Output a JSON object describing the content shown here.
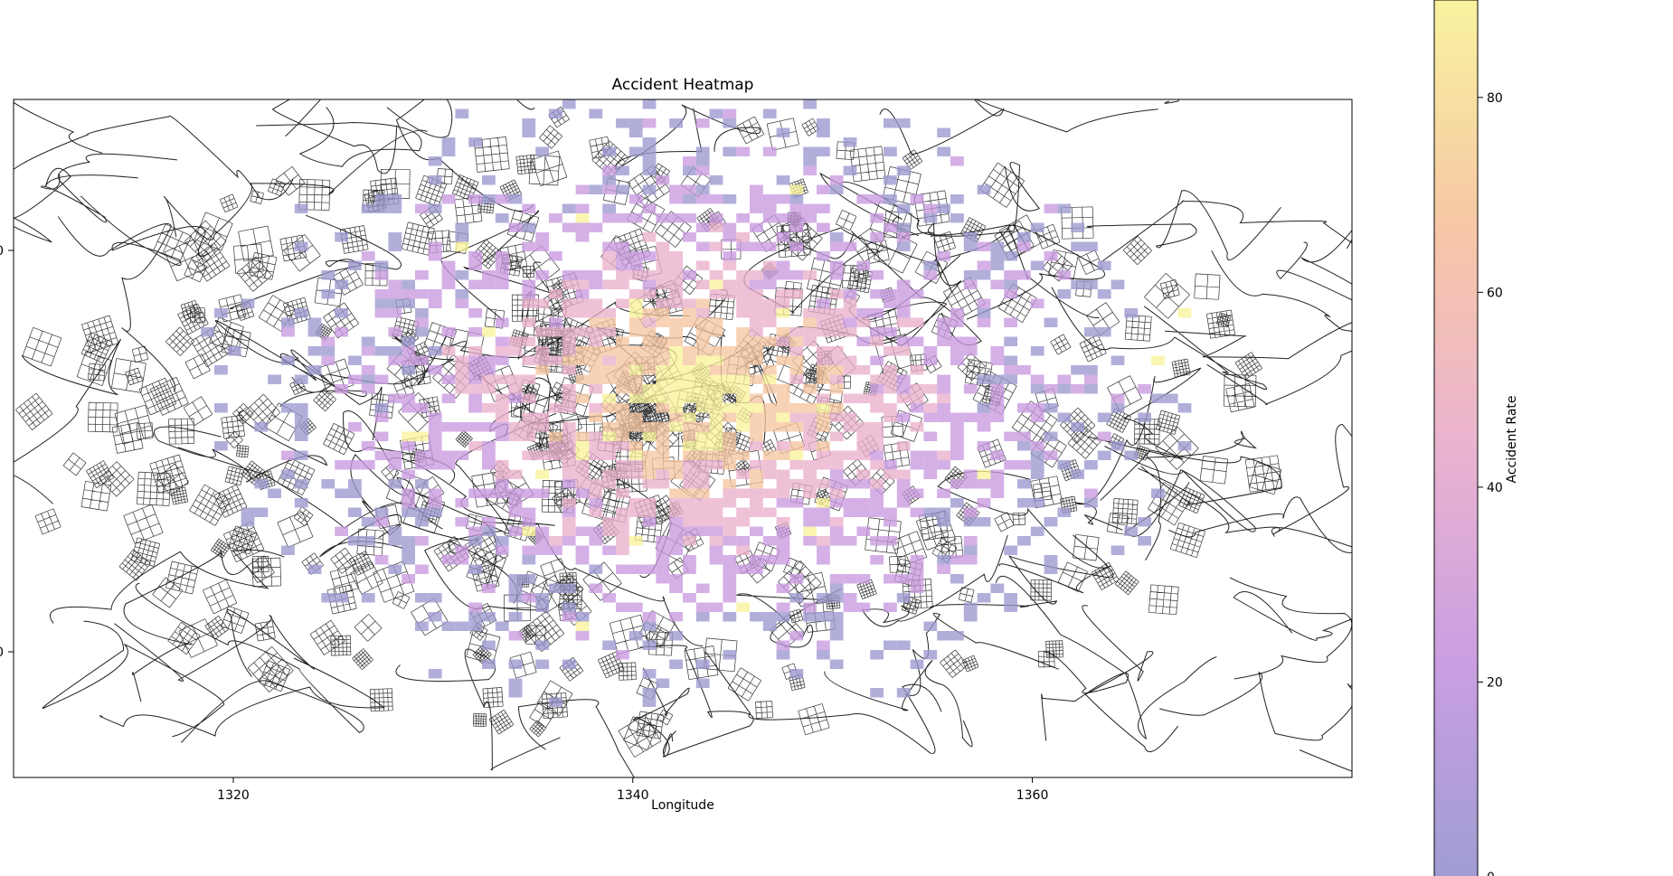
{
  "chart_data": {
    "type": "heatmap",
    "title": "Accident Heatmap",
    "xlabel": "Longitude",
    "ylabel": "",
    "xlim": [
      1309,
      1376
    ],
    "x_ticks": [
      1320,
      1340,
      1360
    ],
    "y_ticks_visible": [
      "0",
      "0"
    ],
    "background": "street map overlay (black road network lines)",
    "colorbar": {
      "label": "Accident Rate",
      "range": [
        0,
        90
      ],
      "ticks": [
        0,
        20,
        40,
        60,
        80
      ],
      "colormap": "plasma (alpha ~0.5)",
      "colors": [
        "#9b98d0",
        "#c89ae0",
        "#eab0cc",
        "#f6c5a0",
        "#f8f29a"
      ]
    },
    "hotspot_center": [
      1342,
      0
    ],
    "density_description": "highest values (~50-80) clustered near longitude 1338-1352; sparse low values (~5-20) toward edges"
  }
}
